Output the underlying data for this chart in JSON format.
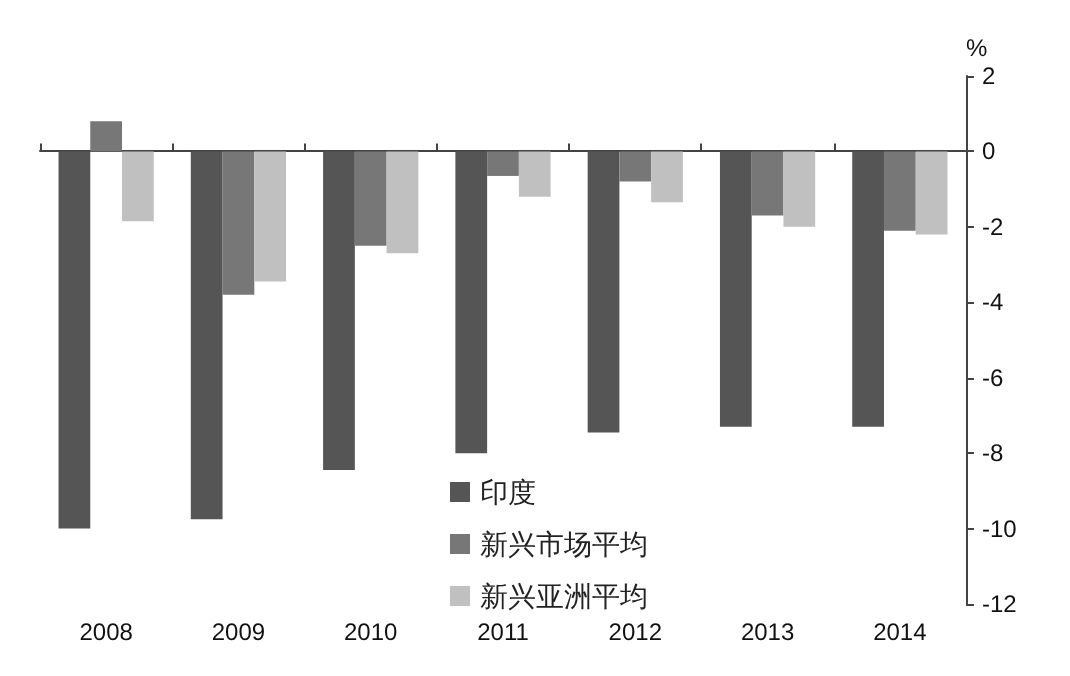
{
  "chart_data": {
    "type": "bar",
    "ylabel": "%",
    "categories": [
      "2008",
      "2009",
      "2010",
      "2011",
      "2012",
      "2013",
      "2014"
    ],
    "series": [
      {
        "name": "印度",
        "color": "#555555",
        "values": [
          -10.0,
          -9.75,
          -8.45,
          -8.0,
          -7.45,
          -7.3,
          -7.3
        ]
      },
      {
        "name": "新兴市场平均",
        "color": "#777777",
        "values": [
          0.8,
          -3.8,
          -2.5,
          -0.65,
          -0.8,
          -1.7,
          -2.1
        ]
      },
      {
        "name": "新兴亚洲平均",
        "color": "#c0c0c0",
        "values": [
          -1.85,
          -3.45,
          -2.7,
          -1.2,
          -1.35,
          -2.0,
          -2.2
        ]
      }
    ],
    "ylim": [
      -12,
      2
    ],
    "yticks": [
      -12,
      -10,
      -8,
      -6,
      -4,
      -2,
      0,
      2
    ],
    "legend": "bottom"
  }
}
